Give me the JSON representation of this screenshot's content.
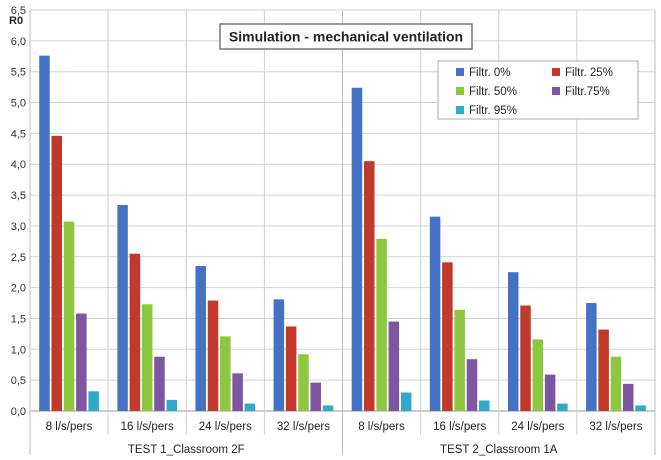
{
  "chart_data": {
    "type": "bar",
    "title": "Simulation - mechanical ventilation",
    "ylabel": "R0",
    "ylim": [
      0,
      6.5
    ],
    "yticks": [
      "0,0",
      "0,5",
      "1,0",
      "1,5",
      "2,0",
      "2,5",
      "3,0",
      "3,5",
      "4,0",
      "4,5",
      "5,0",
      "5,5",
      "6,0",
      "6,5"
    ],
    "groups": [
      {
        "label": "TEST 1_Classroom 2F",
        "categories": [
          "8 l/s/pers",
          "16 l/s/pers",
          "24 l/s/pers",
          "32 l/s/pers"
        ]
      },
      {
        "label": "TEST 2_Classroom 1A",
        "categories": [
          "8 l/s/pers",
          "16 l/s/pers",
          "24 l/s/pers",
          "32 l/s/pers"
        ]
      }
    ],
    "series": [
      {
        "name": "Filtr. 0%",
        "color": "#4472c4",
        "values": [
          5.76,
          3.34,
          2.35,
          1.81,
          5.24,
          3.15,
          2.25,
          1.75
        ]
      },
      {
        "name": "Filtr. 25%",
        "color": "#c0392b",
        "values": [
          4.46,
          2.55,
          1.79,
          1.37,
          4.05,
          2.41,
          1.71,
          1.32
        ]
      },
      {
        "name": "Filtr. 50%",
        "color": "#8dc63f",
        "values": [
          3.07,
          1.73,
          1.21,
          0.92,
          2.79,
          1.64,
          1.16,
          0.88
        ]
      },
      {
        "name": "Filtr.75%",
        "color": "#7d55a0",
        "values": [
          1.58,
          0.88,
          0.61,
          0.46,
          1.45,
          0.84,
          0.59,
          0.44
        ]
      },
      {
        "name": "Filtr. 95%",
        "color": "#31a9c8",
        "values": [
          0.32,
          0.18,
          0.12,
          0.09,
          0.3,
          0.17,
          0.12,
          0.09
        ]
      }
    ]
  }
}
